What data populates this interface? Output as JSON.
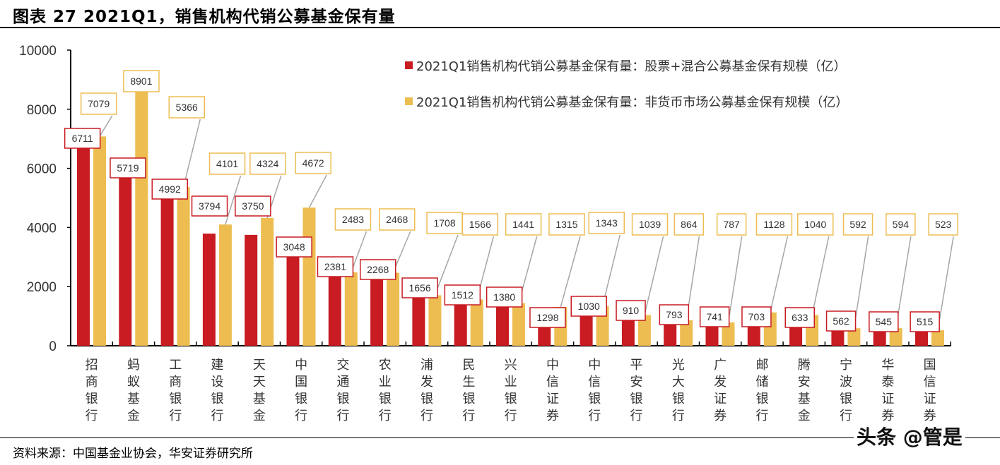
{
  "title": "图表 27 2021Q1，销售机构代销公募基金保有量",
  "source": "资料来源：中国基金业协会，华安证券研究所",
  "watermark": "头条 @管是",
  "colors": {
    "series1": "#C81B22",
    "series2": "#EDBD52",
    "leader": "#A6A6A6"
  },
  "chart_data": {
    "type": "bar",
    "title": "",
    "xlabel": "",
    "ylabel": "",
    "ylim": [
      0,
      10000
    ],
    "yticks": [
      0,
      2000,
      4000,
      6000,
      8000,
      10000
    ],
    "grid": false,
    "legend_position": "top-right",
    "categories": [
      "招商银行",
      "蚂蚁基金",
      "工商银行",
      "建设银行",
      "天天基金",
      "中国银行",
      "交通银行",
      "农业银行",
      "浦发银行",
      "民生银行",
      "兴业银行",
      "中信证券",
      "中信银行",
      "平安银行",
      "光大银行",
      "广发证券",
      "邮储银行",
      "腾安基金",
      "宁波银行",
      "华泰证券",
      "国信证券"
    ],
    "series": [
      {
        "name": "2021Q1销售机构代销公募基金保有量：股票+混合公募基金保有规模（亿）",
        "values": [
          6711,
          5719,
          4992,
          3794,
          3750,
          3048,
          2381,
          2268,
          1656,
          1512,
          1380,
          1298,
          1030,
          910,
          793,
          741,
          703,
          633,
          562,
          545,
          515
        ]
      },
      {
        "name": "2021Q1销售机构代销公募基金保有量：非货币市场公募基金保有规模（亿）",
        "values": [
          7079,
          8901,
          5366,
          4101,
          4324,
          4672,
          2483,
          2468,
          1708,
          1566,
          1441,
          1315,
          1343,
          1039,
          864,
          787,
          1128,
          1040,
          592,
          594,
          523
        ]
      }
    ]
  }
}
